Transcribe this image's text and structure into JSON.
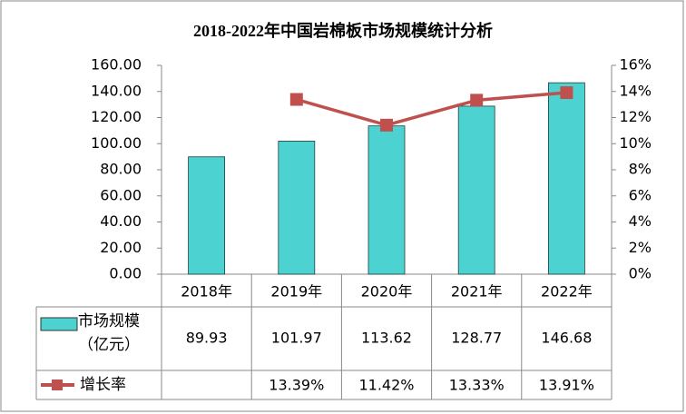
{
  "chart_data": {
    "type": "bar-line-table",
    "title": "2018-2022年中国岩棉板市场规模统计分析",
    "categories": [
      "2018年",
      "2019年",
      "2020年",
      "2021年",
      "2022年"
    ],
    "series": [
      {
        "name": "市场规模（亿元）",
        "color": "#4dd2d2",
        "type": "bar",
        "values": [
          89.93,
          101.97,
          113.62,
          128.77,
          146.68
        ]
      },
      {
        "name": "增长率",
        "color": "#c0504d",
        "type": "line",
        "axis": "y2",
        "values": [
          null,
          13.39,
          11.42,
          13.33,
          13.91
        ],
        "value_labels": [
          null,
          "13.39%",
          "11.42%",
          "13.33%",
          "13.91%"
        ]
      }
    ],
    "ylim": [
      0,
      160
    ],
    "yticks": [
      {
        "value": 0,
        "label": "0.00"
      },
      {
        "value": 20,
        "label": "20.00"
      },
      {
        "value": 40,
        "label": "40.00"
      },
      {
        "value": 60,
        "label": "60.00"
      },
      {
        "value": 80,
        "label": "80.00"
      },
      {
        "value": 100,
        "label": "100.00"
      },
      {
        "value": 120,
        "label": "120.00"
      },
      {
        "value": 140,
        "label": "140.00"
      },
      {
        "value": 160,
        "label": "160.00"
      }
    ],
    "y2lim": [
      0,
      16
    ],
    "y2ticks": [
      {
        "value": 0,
        "label": "0%"
      },
      {
        "value": 2,
        "label": "2%"
      },
      {
        "value": 4,
        "label": "4%"
      },
      {
        "value": 6,
        "label": "6%"
      },
      {
        "value": 8,
        "label": "8%"
      },
      {
        "value": 10,
        "label": "10%"
      },
      {
        "value": 12,
        "label": "12%"
      },
      {
        "value": 14,
        "label": "14%"
      },
      {
        "value": 16,
        "label": "16%"
      }
    ],
    "grid": false
  }
}
